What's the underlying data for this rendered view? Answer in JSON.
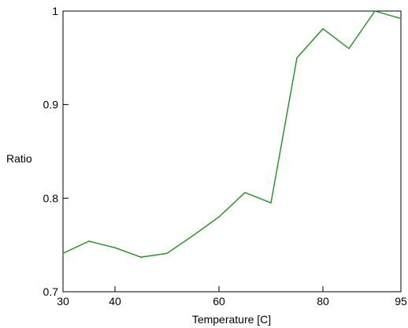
{
  "chart_data": {
    "type": "line",
    "title": "",
    "xlabel": "Temperature [C]",
    "ylabel": "Ratio",
    "xlim": [
      30,
      95
    ],
    "ylim": [
      0.7,
      1.0
    ],
    "x_ticks": [
      30,
      40,
      60,
      80,
      95
    ],
    "y_ticks": [
      0.7,
      0.8,
      0.9,
      1.0
    ],
    "x_tick_labels": [
      "30",
      "40",
      "60",
      "80",
      "95"
    ],
    "y_tick_labels": [
      "0.7",
      "0.8",
      "0.9",
      "1"
    ],
    "grid": false,
    "series": [
      {
        "color": "#1f8f1f",
        "x": [
          30,
          35,
          40,
          45,
          50,
          55,
          60,
          65,
          70,
          75,
          80,
          85,
          90,
          95
        ],
        "y": [
          0.741,
          0.754,
          0.747,
          0.737,
          0.741,
          0.76,
          0.78,
          0.806,
          0.795,
          0.95,
          0.981,
          0.96,
          1.0,
          0.992
        ]
      }
    ]
  }
}
